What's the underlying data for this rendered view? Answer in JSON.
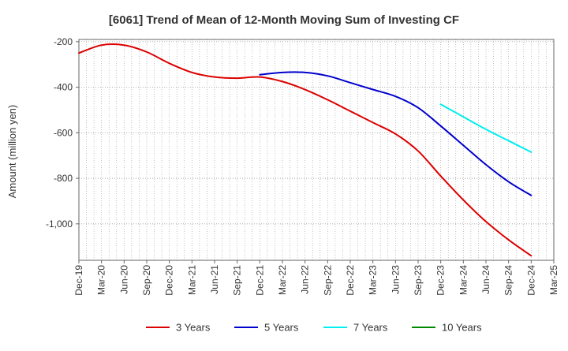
{
  "chart_data": {
    "type": "line",
    "title": "[6061]  Trend of Mean of 12-Month Moving Sum of Investing CF",
    "xlabel": "",
    "ylabel": "Amount (million yen)",
    "ylim": [
      -1160,
      -190
    ],
    "y_ticks": [
      -200,
      -400,
      -600,
      -800,
      -1000
    ],
    "y_tick_labels": [
      "-200",
      "-400",
      "-600",
      "-800",
      "-1,000"
    ],
    "x_tick_labels": [
      "Dec-19",
      "Mar-20",
      "Jun-20",
      "Sep-20",
      "Dec-20",
      "Mar-21",
      "Jun-21",
      "Sep-21",
      "Dec-21",
      "Mar-22",
      "Jun-22",
      "Sep-22",
      "Dec-22",
      "Mar-23",
      "Jun-23",
      "Sep-23",
      "Dec-23",
      "Mar-24",
      "Jun-24",
      "Sep-24",
      "Dec-24",
      "Mar-25"
    ],
    "x_range_months": [
      0,
      63
    ],
    "grid": true,
    "legend_position": "bottom",
    "series": [
      {
        "name": "3 Years",
        "color": "#dd0000",
        "x_months": [
          0,
          3,
          6,
          9,
          12,
          15,
          18,
          21,
          24,
          27,
          30,
          33,
          36,
          39,
          42,
          45,
          48,
          51,
          54,
          57,
          60
        ],
        "values": [
          -250,
          -215,
          -215,
          -245,
          -295,
          -335,
          -355,
          -360,
          -355,
          -375,
          -410,
          -455,
          -505,
          -555,
          -605,
          -680,
          -790,
          -895,
          -990,
          -1070,
          -1140
        ]
      },
      {
        "name": "5 Years",
        "color": "#0000cc",
        "x_months": [
          24,
          27,
          30,
          33,
          36,
          39,
          42,
          45,
          48,
          51,
          54,
          57,
          60
        ],
        "values": [
          -345,
          -335,
          -335,
          -350,
          -380,
          -410,
          -440,
          -490,
          -570,
          -655,
          -740,
          -815,
          -875
        ]
      },
      {
        "name": "7 Years",
        "color": "#00eeee",
        "x_months": [
          48,
          51,
          54,
          57,
          60
        ],
        "values": [
          -475,
          -530,
          -585,
          -635,
          -685
        ]
      },
      {
        "name": "10 Years",
        "color": "#008800",
        "x_months": [],
        "values": []
      }
    ]
  }
}
